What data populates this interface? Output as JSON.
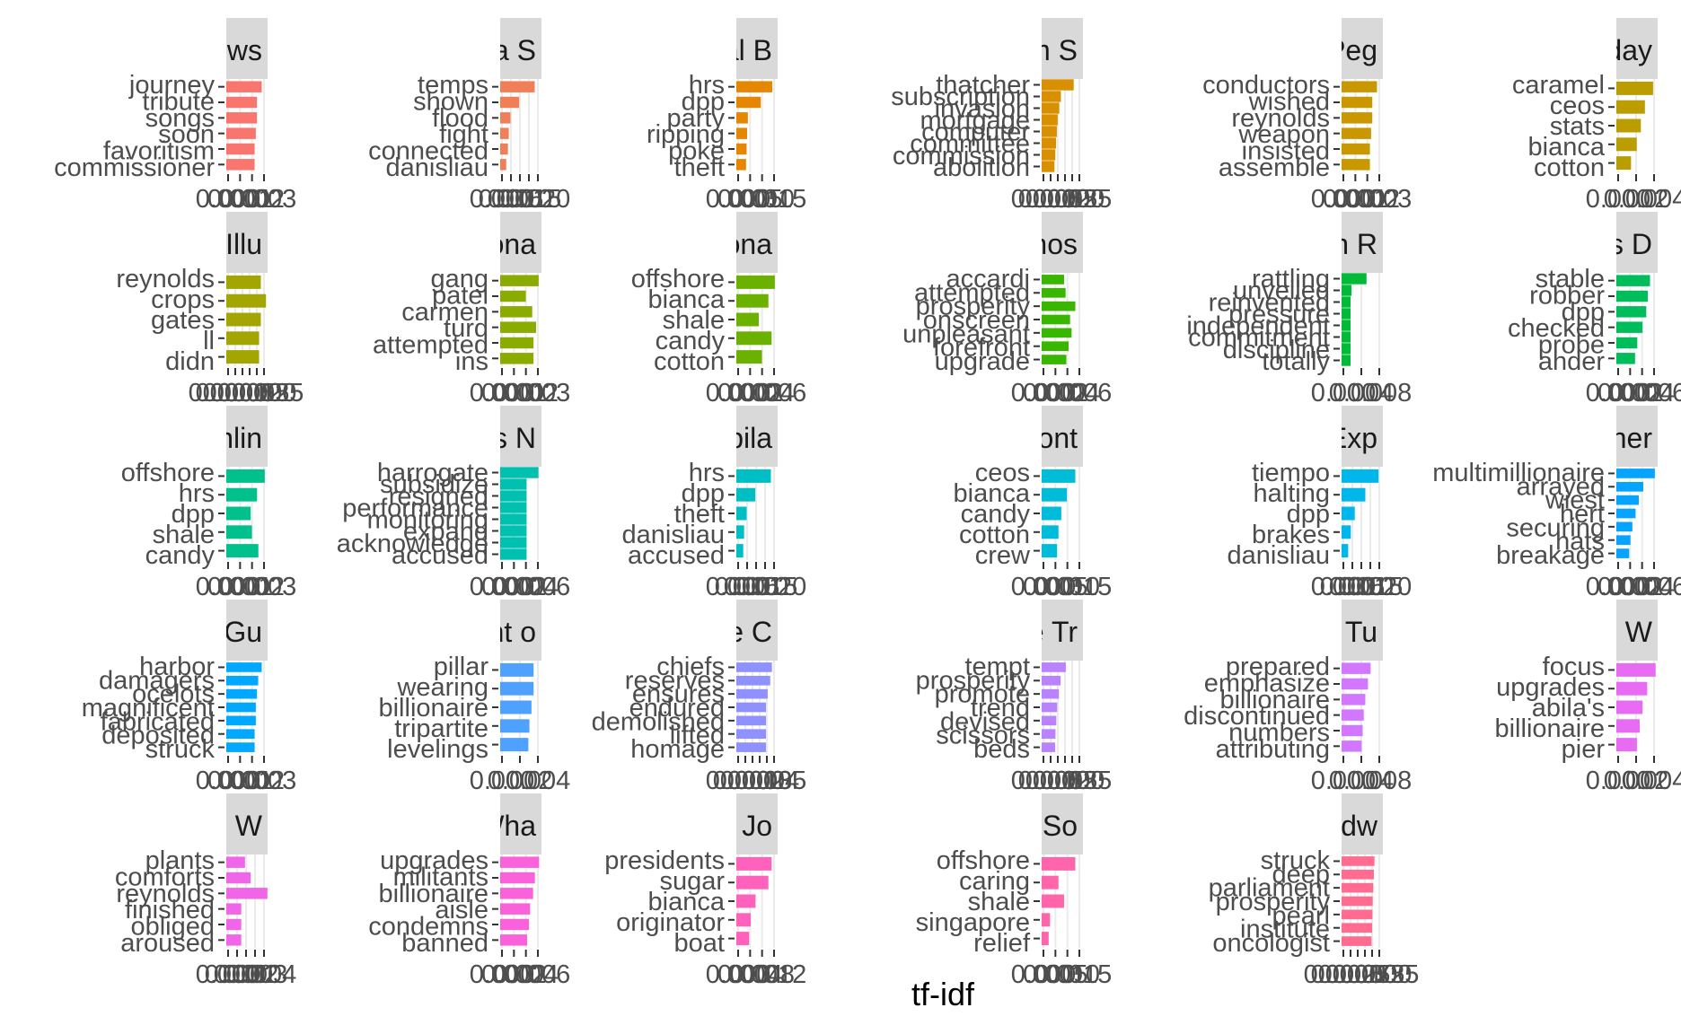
{
  "chart_data": {
    "type": "bar",
    "orientation": "horizontal",
    "facet_layout": "6 columns x 5 rows, free scales",
    "xlabel": "tf-idf",
    "ylabel": "",
    "grid": true,
    "legend": "none",
    "facets": [
      {
        "strip": "ws",
        "color": "#F8766D",
        "words": [
          "journey",
          "tribute",
          "songs",
          "soon",
          "favoritism",
          "commissioner"
        ],
        "values": [
          0.003,
          0.0026,
          0.0026,
          0.0025,
          0.0024,
          0.0024
        ],
        "xmax": 0.0038,
        "ticks": [
          "0.000",
          "0.001",
          "0.002",
          "0.003"
        ]
      },
      {
        "strip": "a S",
        "color": "#F07F58",
        "words": [
          "temps",
          "shown",
          "flood",
          "fight",
          "connected",
          "danisliau"
        ],
        "values": [
          0.02,
          0.011,
          0.006,
          0.005,
          0.0045,
          0.0035
        ],
        "xmax": 0.026,
        "ticks": [
          "0.000",
          "0.005",
          "0.010",
          "0.015",
          "0.020"
        ]
      },
      {
        "strip": "al B",
        "color": "#E58700",
        "words": [
          "hrs",
          "dpp",
          "party",
          "ripping",
          "poke",
          "theft"
        ],
        "values": [
          0.014,
          0.0095,
          0.0045,
          0.0042,
          0.004,
          0.0038
        ],
        "xmax": 0.0175,
        "ticks": [
          "0.000",
          "0.005",
          "0.010",
          "0.015"
        ]
      },
      {
        "strip": "m S",
        "color": "#D89000",
        "words": [
          "thatcher",
          "subscription",
          "invasion",
          "mortgage",
          "computer",
          "committee",
          "commission",
          "abolition"
        ],
        "values": [
          0.02,
          0.012,
          0.011,
          0.01,
          0.0095,
          0.009,
          0.0085,
          0.008
        ],
        "xmax": 0.028,
        "dense": true,
        "ticks": [
          "0.000",
          "0.005",
          "0.010",
          "0.015",
          "0.020",
          "0.025"
        ]
      },
      {
        "strip": "Peg",
        "color": "#C99800",
        "words": [
          "conductors",
          "wished",
          "reynolds",
          "weapon",
          "insisted",
          "assemble"
        ],
        "values": [
          0.003,
          0.0026,
          0.0026,
          0.0025,
          0.0024,
          0.0024
        ],
        "xmax": 0.0038,
        "ticks": [
          "0.000",
          "0.001",
          "0.002",
          "0.003"
        ]
      },
      {
        "strip": "day",
        "color": "#BB9D00",
        "words": [
          "caramel",
          "ceos",
          "stats",
          "bianca",
          "cotton"
        ],
        "values": [
          0.0045,
          0.0035,
          0.003,
          0.0025,
          0.0018
        ],
        "xmax": 0.0055,
        "ticks": [
          "0.000",
          "0.002",
          "0.004"
        ]
      },
      {
        "strip": "d Illu",
        "color": "#A3A500",
        "words": [
          "reynolds",
          "crops",
          "gates",
          "ll",
          "didn"
        ],
        "values": [
          0.002,
          0.0023,
          0.002,
          0.0019,
          0.0019
        ],
        "xmax": 0.0026,
        "ticks": [
          "0.0000",
          "0.0005",
          "0.0010",
          "0.0015",
          "0.0020",
          "0.0025"
        ]
      },
      {
        "strip": "iona",
        "color": "#8AAB00",
        "words": [
          "gang",
          "patel",
          "carmen",
          "turd",
          "attempted",
          "ins"
        ],
        "values": [
          0.003,
          0.002,
          0.0025,
          0.0028,
          0.0026,
          0.0026
        ],
        "xmax": 0.0035,
        "ticks": [
          "0.000",
          "0.001",
          "0.002",
          "0.003"
        ]
      },
      {
        "strip": "ona",
        "color": "#6BB100",
        "words": [
          "offshore",
          "bianca",
          "shale",
          "candy",
          "cotton"
        ],
        "values": [
          0.006,
          0.005,
          0.0035,
          0.0055,
          0.004
        ],
        "xmax": 0.007,
        "ticks": [
          "0.000",
          "0.002",
          "0.004",
          "0.006"
        ]
      },
      {
        "strip": "nos",
        "color": "#39B600",
        "words": [
          "accardi",
          "attempted",
          "prosperity",
          "onscreen",
          "unpleasant",
          "forefront",
          "upgrade"
        ],
        "values": [
          0.003,
          0.0032,
          0.0045,
          0.0038,
          0.004,
          0.0036,
          0.0033
        ],
        "xmax": 0.006,
        "ticks": [
          "0.000",
          "0.002",
          "0.004",
          "0.006"
        ]
      },
      {
        "strip": "n R",
        "color": "#00BA38",
        "words": [
          "rattling",
          "unveiled",
          "reinvented",
          "pressure",
          "independent",
          "commitment",
          "discipline",
          "totally"
        ],
        "values": [
          0.005,
          0.002,
          0.0018,
          0.0018,
          0.0018,
          0.0018,
          0.0018,
          0.0018
        ],
        "xmax": 0.009,
        "dense": true,
        "ticks": [
          "0.000",
          "0.004",
          "0.008"
        ]
      },
      {
        "strip": "s D",
        "color": "#00BD5C",
        "words": [
          "stable",
          "robber",
          "dpp",
          "checked",
          "probe",
          "ahder"
        ],
        "values": [
          0.0045,
          0.0042,
          0.004,
          0.0035,
          0.0028,
          0.0025
        ],
        "xmax": 0.006,
        "ticks": [
          "0.000",
          "0.002",
          "0.004",
          "0.006"
        ]
      },
      {
        "strip": "nlin",
        "color": "#00C08B",
        "words": [
          "offshore",
          "hrs",
          "dpp",
          "shale",
          "candy"
        ],
        "values": [
          0.003,
          0.0024,
          0.0019,
          0.002,
          0.0025
        ],
        "xmax": 0.0035,
        "ticks": [
          "0.000",
          "0.001",
          "0.002",
          "0.003"
        ]
      },
      {
        "strip": "s N",
        "color": "#00C0AF",
        "words": [
          "harrogate",
          "subsidize",
          "resigned",
          "performance",
          "monitoring",
          "expand",
          "acknowledge",
          "accused"
        ],
        "values": [
          0.0058,
          0.004,
          0.004,
          0.004,
          0.004,
          0.004,
          0.004,
          0.004
        ],
        "xmax": 0.0068,
        "dense": true,
        "ticks": [
          "0.000",
          "0.002",
          "0.004",
          "0.006"
        ]
      },
      {
        "strip": "bila",
        "color": "#00BFC4",
        "words": [
          "hrs",
          "dpp",
          "theft",
          "danisliau",
          "accused"
        ],
        "values": [
          0.02,
          0.011,
          0.006,
          0.0045,
          0.004
        ],
        "xmax": 0.026,
        "ticks": [
          "0.000",
          "0.005",
          "0.010",
          "0.015",
          "0.020"
        ]
      },
      {
        "strip": "Cont",
        "color": "#00BCD8",
        "words": [
          "ceos",
          "bianca",
          "candy",
          "cotton",
          "crew"
        ],
        "values": [
          0.012,
          0.009,
          0.007,
          0.006,
          0.0055
        ],
        "xmax": 0.016,
        "ticks": [
          "0.000",
          "0.005",
          "0.010",
          "0.015"
        ]
      },
      {
        "strip": "Exp",
        "color": "#00B6EB",
        "words": [
          "tiempo",
          "halting",
          "dpp",
          "brakes",
          "danisliau"
        ],
        "values": [
          0.014,
          0.009,
          0.005,
          0.0035,
          0.0025
        ],
        "xmax": 0.017,
        "ticks": [
          "0.000",
          "0.005",
          "0.010",
          "0.015",
          "0.020"
        ]
      },
      {
        "strip": "ener",
        "color": "#06A4FF",
        "words": [
          "multimillionaire",
          "arrayed",
          "wiest",
          "hert",
          "securing",
          "hats",
          "breakage"
        ],
        "values": [
          0.006,
          0.0042,
          0.0035,
          0.003,
          0.0025,
          0.0022,
          0.002
        ],
        "xmax": 0.007,
        "ticks": [
          "0.000",
          "0.002",
          "0.004",
          "0.006"
        ]
      },
      {
        "strip": "e Gu",
        "color": "#00A9FF",
        "words": [
          "harbor",
          "damagers",
          "ocelots",
          "magnificent",
          "fabricated",
          "deposited",
          "struck"
        ],
        "values": [
          0.003,
          0.0027,
          0.0026,
          0.0025,
          0.0025,
          0.0024,
          0.0024
        ],
        "xmax": 0.0038,
        "ticks": [
          "0.000",
          "0.001",
          "0.002",
          "0.003"
        ]
      },
      {
        "strip": "ht o",
        "color": "#4FA1FF",
        "words": [
          "pillar",
          "wearing",
          "billionaire",
          "tripartite",
          "levelings"
        ],
        "values": [
          0.0032,
          0.0032,
          0.003,
          0.0028,
          0.0027
        ],
        "xmax": 0.0043,
        "ticks": [
          "0.000",
          "0.002",
          "0.004"
        ]
      },
      {
        "strip": "e C",
        "color": "#8F91FF",
        "words": [
          "chiefs",
          "reserves",
          "ensures",
          "endured",
          "demolished",
          "lifted",
          "homage"
        ],
        "values": [
          0.0042,
          0.004,
          0.0037,
          0.0035,
          0.0035,
          0.0035,
          0.0035
        ],
        "xmax": 0.0053,
        "ticks": [
          "0.000",
          "0.001",
          "0.002",
          "0.003",
          "0.004",
          "0.005"
        ]
      },
      {
        "strip": "e Tr",
        "color": "#B983FF",
        "words": [
          "tempt",
          "prosperity",
          "promote",
          "trend",
          "devised",
          "scissors",
          "beds"
        ],
        "values": [
          0.014,
          0.011,
          0.01,
          0.009,
          0.0085,
          0.008,
          0.0078
        ],
        "xmax": 0.026,
        "ticks": [
          "0.000",
          "0.005",
          "0.010",
          "0.015",
          "0.020",
          "0.025"
        ]
      },
      {
        "strip": "e Tu",
        "color": "#D277FF",
        "words": [
          "prepared",
          "emphasize",
          "billionaire",
          "discontinued",
          "numbers",
          "attributing"
        ],
        "values": [
          0.0055,
          0.005,
          0.0045,
          0.0042,
          0.004,
          0.0038
        ],
        "xmax": 0.0085,
        "ticks": [
          "0.000",
          "0.004",
          "0.008"
        ]
      },
      {
        "strip": "W",
        "color": "#E76BF3",
        "words": [
          "focus",
          "upgrades",
          "abila's",
          "billionaire",
          "pier"
        ],
        "values": [
          0.0042,
          0.0033,
          0.0028,
          0.0025,
          0.0022
        ],
        "xmax": 0.0048,
        "ticks": [
          "0.000",
          "0.002",
          "0.004"
        ]
      },
      {
        "strip": "e W",
        "color": "#F166E8",
        "words": [
          "plants",
          "comforts",
          "reynolds",
          "finished",
          "obliged",
          "aroused"
        ],
        "values": [
          0.001,
          0.0013,
          0.0022,
          0.0008,
          0.0008,
          0.0008
        ],
        "xmax": 0.0024,
        "ticks": [
          "0.000",
          "0.001",
          "0.002",
          "0.003",
          "0.004"
        ]
      },
      {
        "strip": "Wha",
        "color": "#FA62DB",
        "words": [
          "upgrades",
          "militants",
          "billionaire",
          "aisle",
          "condemns",
          "banned"
        ],
        "values": [
          0.0065,
          0.0058,
          0.0055,
          0.005,
          0.0048,
          0.0045
        ],
        "xmax": 0.0075,
        "ticks": [
          "0.000",
          "0.002",
          "0.004",
          "0.006"
        ]
      },
      {
        "strip": "d Jo",
        "color": "#FF62BC",
        "words": [
          "presidents",
          "sugar",
          "bianca",
          "originator",
          "boat"
        ],
        "values": [
          0.011,
          0.01,
          0.006,
          0.0045,
          0.004
        ],
        "xmax": 0.014,
        "ticks": [
          "0.000",
          "0.004",
          "0.008",
          "0.012"
        ]
      },
      {
        "strip": "d So",
        "color": "#FF65AA",
        "words": [
          "offshore",
          "caring",
          "shale",
          "singapore",
          "relief"
        ],
        "values": [
          0.012,
          0.006,
          0.008,
          0.003,
          0.0025
        ],
        "xmax": 0.016,
        "ticks": [
          "0.000",
          "0.005",
          "0.010",
          "0.015"
        ]
      },
      {
        "strip": "rldw",
        "color": "#FF6C90",
        "words": [
          "struck",
          "deep",
          "parliament",
          "prosperity",
          "pearl",
          "institute",
          "oncologist"
        ],
        "values": [
          0.011,
          0.0108,
          0.0106,
          0.0104,
          0.0103,
          0.0102,
          0.01
        ],
        "xmax": 0.015,
        "ticks": [
          "0.0000",
          "0.0025",
          "0.0050",
          "0.0075",
          "0.0100",
          "0.0125"
        ]
      }
    ]
  }
}
